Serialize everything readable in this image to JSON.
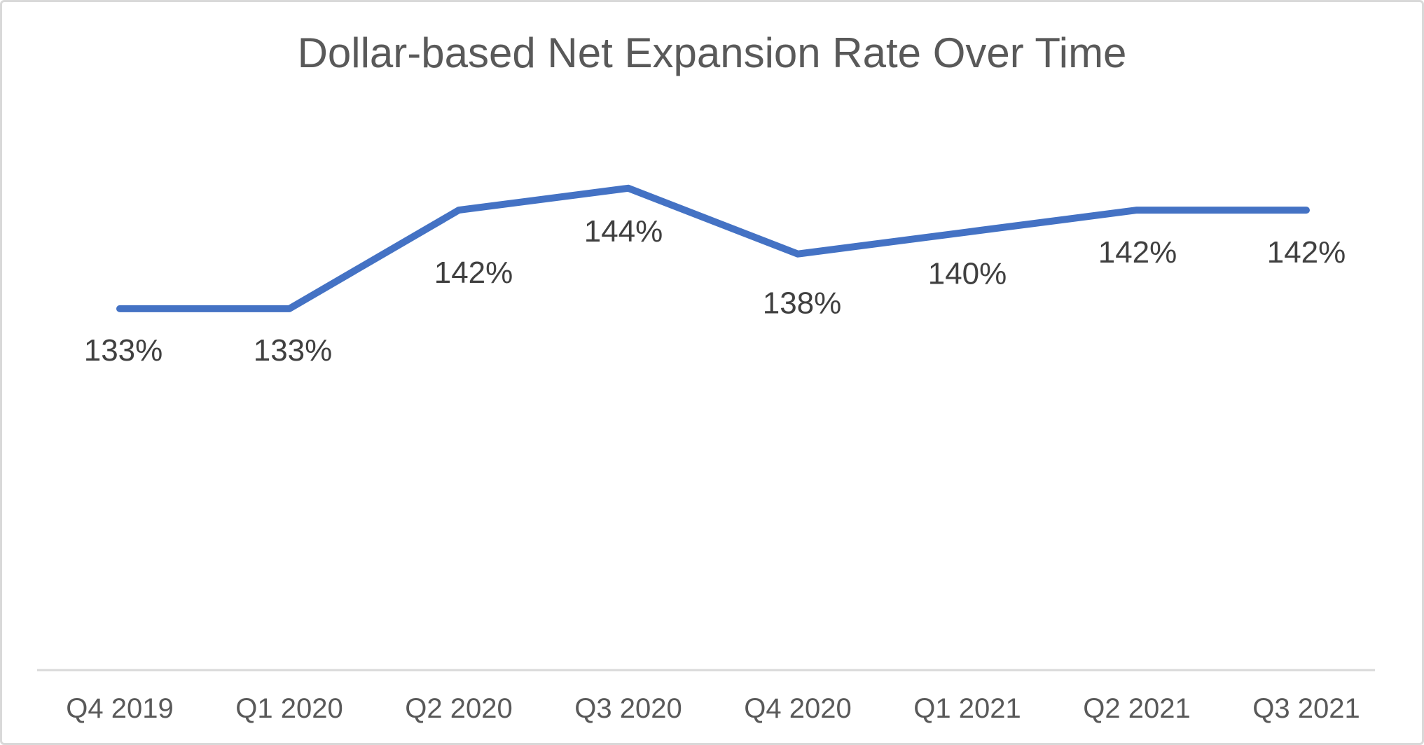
{
  "chart_data": {
    "type": "line",
    "title": "Dollar-based Net Expansion Rate Over Time",
    "categories": [
      "Q4 2019",
      "Q1 2020",
      "Q2 2020",
      "Q3 2020",
      "Q4 2020",
      "Q1 2021",
      "Q2 2021",
      "Q3 2021"
    ],
    "values": [
      133,
      133,
      142,
      144,
      138,
      140,
      142,
      142
    ],
    "data_labels": [
      "133%",
      "133%",
      "142%",
      "144%",
      "138%",
      "140%",
      "142%",
      "142%"
    ],
    "data_label_position": "below",
    "xlabel": "",
    "ylabel": "",
    "ylim": [
      100,
      150
    ],
    "grid": false,
    "legend": "none",
    "markers": "none",
    "colors": {
      "line": "#4472C4",
      "title": "#595959",
      "data_label": "#404040",
      "axis_label": "#595959",
      "axis_line": "#D9D9D9",
      "background": "#FFFFFF",
      "border": "#D9D9D9"
    }
  }
}
